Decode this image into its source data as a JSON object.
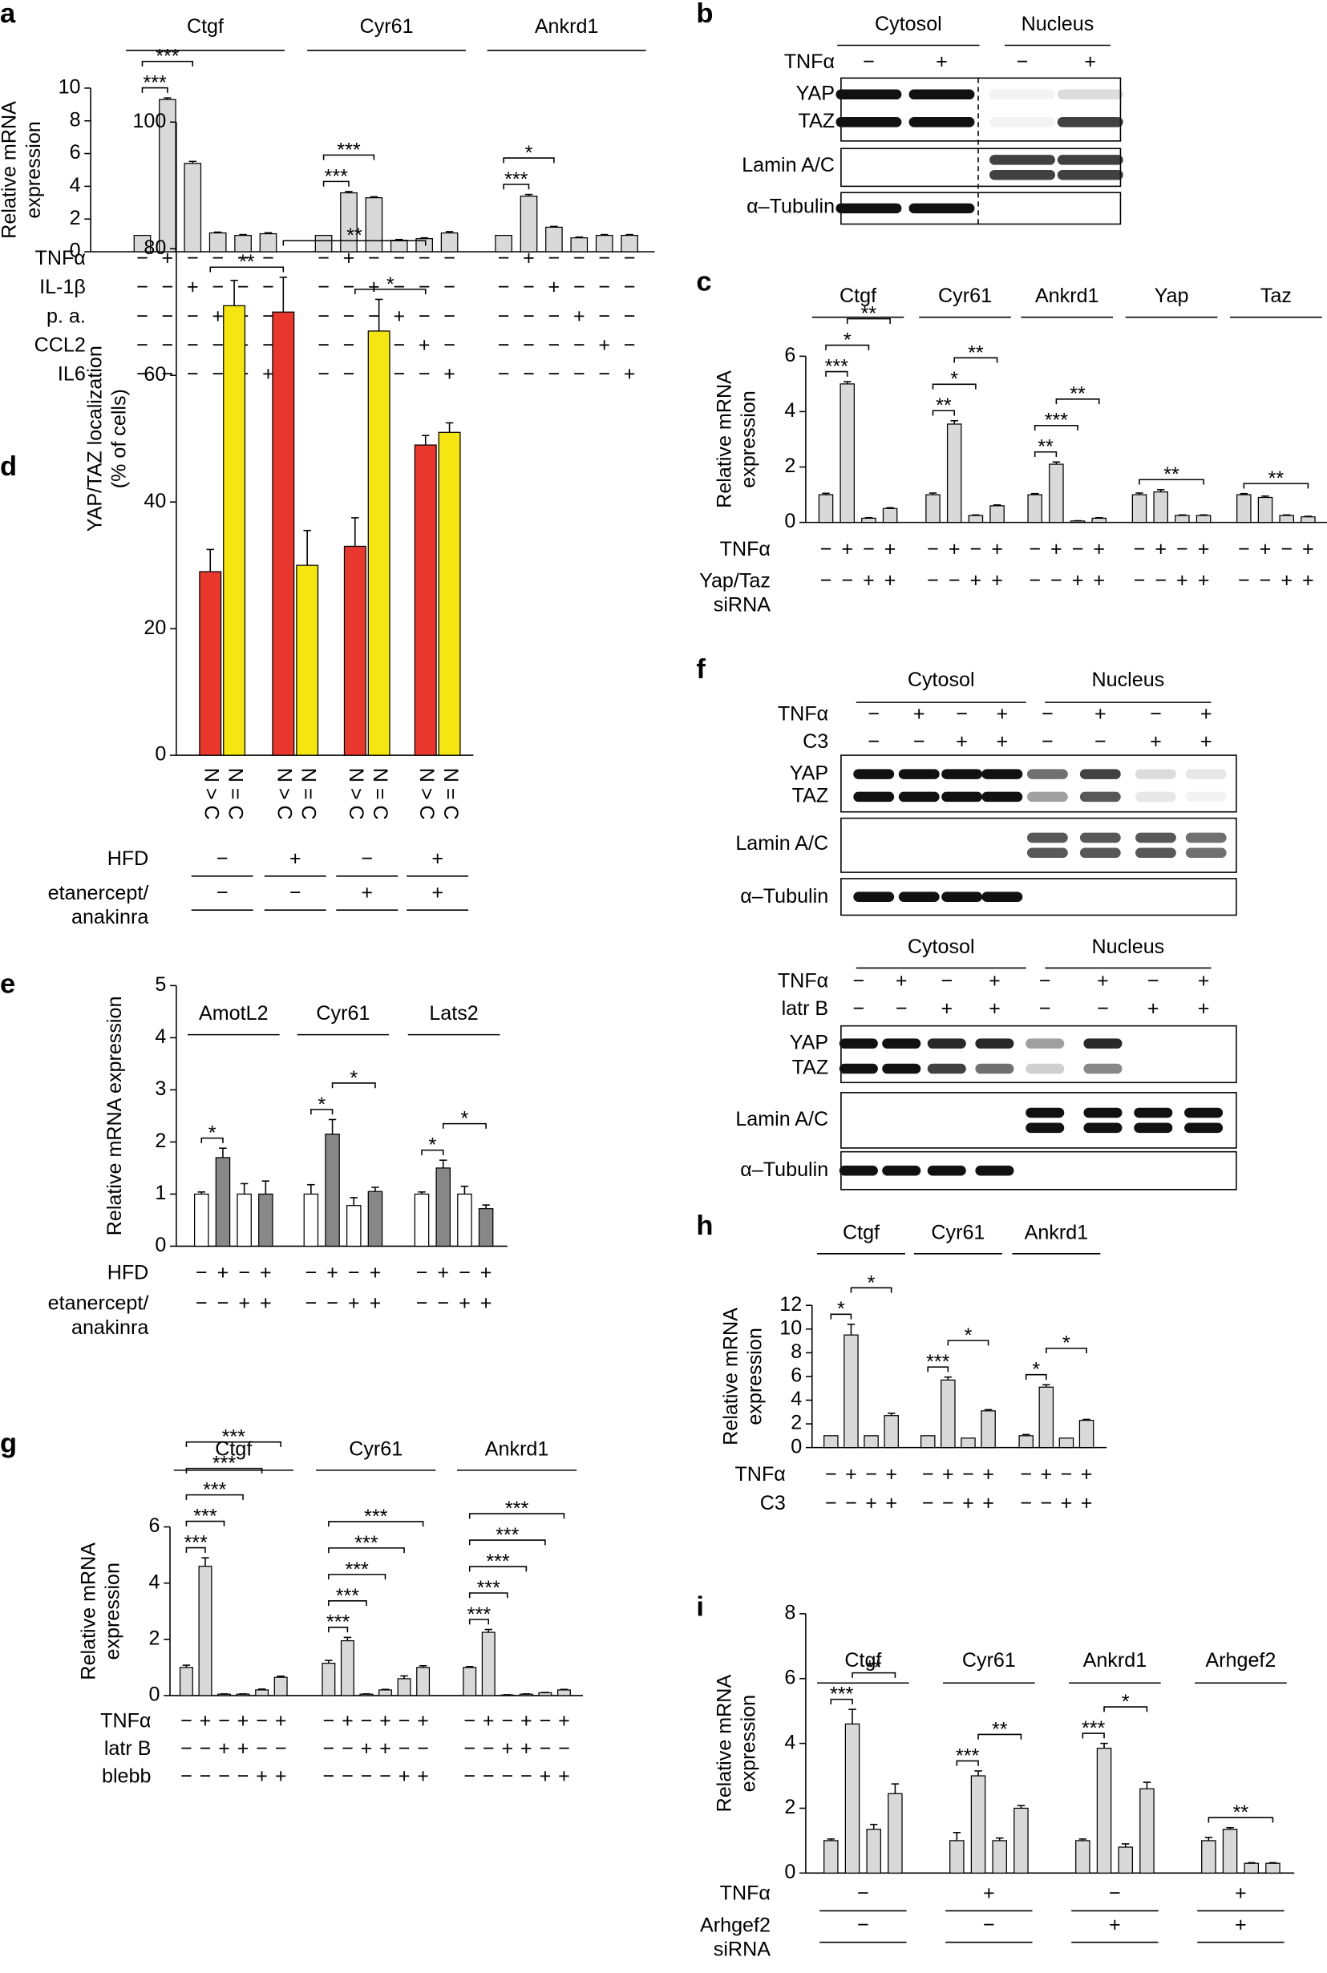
{
  "chart_data": [
    {
      "panel": "a",
      "type": "bar",
      "ylabel": "Relative mRNA\nexpression",
      "ylim": [
        0,
        10
      ],
      "yticks": [
        0,
        2,
        4,
        6,
        8,
        10
      ],
      "color": "#d9d9d9",
      "groups": [
        {
          "name": "Ctgf",
          "values": [
            1,
            9.3,
            5.4,
            1.15,
            1.0,
            1.1
          ],
          "errors": [
            0,
            0.1,
            0.12,
            0.05,
            0.05,
            0.06
          ]
        },
        {
          "name": "Cyr61",
          "values": [
            1,
            3.6,
            3.3,
            0.7,
            0.8,
            1.15
          ],
          "errors": [
            0,
            0.08,
            0.06,
            0.05,
            0.05,
            0.08
          ]
        },
        {
          "name": "Ankrd1",
          "values": [
            1,
            3.4,
            1.5,
            0.85,
            1.0,
            1.0
          ],
          "errors": [
            0,
            0.1,
            0.05,
            0.05,
            0.05,
            0.05
          ]
        }
      ],
      "conditions": [
        {
          "name": "TNFα",
          "signs": [
            "−",
            "+",
            "−",
            "−",
            "−",
            "−"
          ]
        },
        {
          "name": "IL‑1β",
          "signs": [
            "−",
            "−",
            "+",
            "−",
            "−",
            "−"
          ]
        },
        {
          "name": "p. a.",
          "signs": [
            "−",
            "−",
            "−",
            "+",
            "−",
            "−"
          ]
        },
        {
          "name": "CCL2",
          "signs": [
            "−",
            "−",
            "−",
            "−",
            "+",
            "−"
          ]
        },
        {
          "name": "IL6",
          "signs": [
            "−",
            "−",
            "−",
            "−",
            "−",
            "+"
          ]
        }
      ],
      "sig": [
        {
          "text": "***",
          "bars": [
            0,
            1
          ]
        },
        {
          "text": "***",
          "bars": [
            0,
            2
          ]
        },
        {
          "text": "***",
          "bars": [
            6,
            7
          ]
        },
        {
          "text": "***",
          "bars": [
            6,
            8
          ]
        },
        {
          "text": "***",
          "bars": [
            12,
            13
          ]
        },
        {
          "text": "*",
          "bars": [
            12,
            14
          ]
        }
      ]
    },
    {
      "panel": "c",
      "type": "bar",
      "ylabel": "Relative mRNA\nexpression",
      "ylim": [
        0,
        6
      ],
      "yticks": [
        0,
        2,
        4,
        6
      ],
      "color": "#d9d9d9",
      "groups": [
        {
          "name": "Ctgf",
          "values": [
            1,
            5.0,
            0.15,
            0.5
          ],
          "errors": [
            0.05,
            0.08,
            0.02,
            0.03
          ]
        },
        {
          "name": "Cyr61",
          "values": [
            1,
            3.55,
            0.25,
            0.6
          ],
          "errors": [
            0.06,
            0.12,
            0.02,
            0.03
          ]
        },
        {
          "name": "Ankrd1",
          "values": [
            1,
            2.1,
            0.05,
            0.15
          ],
          "errors": [
            0.04,
            0.08,
            0.01,
            0.02
          ]
        },
        {
          "name": "Yap",
          "values": [
            1,
            1.1,
            0.25,
            0.25
          ],
          "errors": [
            0.06,
            0.08,
            0.02,
            0.02
          ]
        },
        {
          "name": "Taz",
          "values": [
            1,
            0.9,
            0.25,
            0.2
          ],
          "errors": [
            0.04,
            0.05,
            0.02,
            0.02
          ]
        }
      ],
      "conditions": [
        {
          "name": "TNFα",
          "signs": [
            "−",
            "+",
            "−",
            "+"
          ]
        },
        {
          "name": "Yap/Taz\nsiRNA",
          "signs": [
            "−",
            "−",
            "+",
            "+"
          ]
        }
      ],
      "sig": [
        {
          "text": "***",
          "bars": [
            0,
            1
          ]
        },
        {
          "text": "*",
          "bars": [
            0,
            2
          ]
        },
        {
          "text": "**",
          "bars": [
            1,
            3
          ]
        },
        {
          "text": "**",
          "bars": [
            4,
            5
          ]
        },
        {
          "text": "*",
          "bars": [
            4,
            6
          ]
        },
        {
          "text": "**",
          "bars": [
            5,
            7
          ]
        },
        {
          "text": "**",
          "bars": [
            8,
            9
          ]
        },
        {
          "text": "***",
          "bars": [
            8,
            10
          ]
        },
        {
          "text": "**",
          "bars": [
            9,
            11
          ]
        },
        {
          "text": "**",
          "bars": [
            12,
            15
          ]
        },
        {
          "text": "**",
          "bars": [
            16,
            19
          ]
        }
      ]
    },
    {
      "panel": "d",
      "type": "bar",
      "ylabel": "YAP/TAZ localization\n(% of cells)",
      "ylim": [
        0,
        100
      ],
      "yticks": [
        0,
        20,
        40,
        60,
        80,
        100
      ],
      "colors": [
        "#e8382e",
        "#f5e511"
      ],
      "bar_labels": [
        "N > C",
        "N = C"
      ],
      "groups": [
        {
          "values": [
            29,
            71
          ],
          "errors": [
            3.5,
            4
          ]
        },
        {
          "values": [
            70,
            30
          ],
          "errors": [
            5.5,
            5.5
          ]
        },
        {
          "values": [
            33,
            67
          ],
          "errors": [
            4.5,
            5
          ]
        },
        {
          "values": [
            49,
            51
          ],
          "errors": [
            1.5,
            1.5
          ]
        }
      ],
      "conditions": [
        {
          "name": "HFD",
          "signs": [
            "−",
            "+",
            "−",
            "+"
          ]
        },
        {
          "name": "etanercept/\nanakinra",
          "signs": [
            "−",
            "−",
            "+",
            "+"
          ]
        }
      ],
      "sig": [
        {
          "text": "**",
          "bars": [
            0,
            2
          ]
        },
        {
          "text": "*",
          "bars": [
            4,
            6
          ]
        },
        {
          "text": "**",
          "bars": [
            2,
            6
          ]
        }
      ]
    },
    {
      "panel": "e",
      "type": "bar",
      "ylabel": "Relative mRNA expression",
      "ylim": [
        0,
        5
      ],
      "yticks": [
        0,
        1,
        2,
        3,
        4,
        5
      ],
      "colors": [
        "#ffffff",
        "#888888"
      ],
      "groups": [
        {
          "name": "AmotL2",
          "values": [
            1.0,
            1.7,
            1.0,
            1.0
          ],
          "errors": [
            0.04,
            0.18,
            0.2,
            0.25
          ]
        },
        {
          "name": "Cyr61",
          "values": [
            1.0,
            2.15,
            0.78,
            1.05
          ],
          "errors": [
            0.18,
            0.28,
            0.15,
            0.08
          ]
        },
        {
          "name": "Lats2",
          "values": [
            1.0,
            1.5,
            1.0,
            0.72
          ],
          "errors": [
            0.04,
            0.15,
            0.15,
            0.07
          ]
        }
      ],
      "conditions": [
        {
          "name": "HFD",
          "signs": [
            "−",
            "+",
            "−",
            "+"
          ]
        },
        {
          "name": "etanercept/\nanakinra",
          "signs": [
            "−",
            "−",
            "+",
            "+"
          ]
        }
      ],
      "sig": [
        {
          "text": "*",
          "bars": [
            0,
            1
          ]
        },
        {
          "text": "*",
          "bars": [
            4,
            5
          ]
        },
        {
          "text": "*",
          "bars": [
            5,
            7
          ]
        },
        {
          "text": "*",
          "bars": [
            8,
            9
          ]
        },
        {
          "text": "*",
          "bars": [
            9,
            11
          ]
        }
      ]
    },
    {
      "panel": "g",
      "type": "bar",
      "ylabel": "Relative mRNA\nexpression",
      "ylim": [
        0,
        6
      ],
      "yticks": [
        0,
        2,
        4,
        6
      ],
      "color": "#d9d9d9",
      "groups": [
        {
          "name": "Ctgf",
          "values": [
            1,
            4.6,
            0.05,
            0.05,
            0.2,
            0.65
          ],
          "errors": [
            0.08,
            0.3,
            0.01,
            0.01,
            0.03,
            0.04
          ]
        },
        {
          "name": "Cyr61",
          "values": [
            1.15,
            1.95,
            0.05,
            0.2,
            0.6,
            1.0
          ],
          "errors": [
            0.1,
            0.12,
            0.01,
            0.02,
            0.1,
            0.06
          ]
        },
        {
          "name": "Ankrd1",
          "values": [
            1.0,
            2.25,
            0.02,
            0.05,
            0.1,
            0.2
          ],
          "errors": [
            0.03,
            0.1,
            0.01,
            0.01,
            0.01,
            0.02
          ]
        }
      ],
      "conditions": [
        {
          "name": "TNFα",
          "signs": [
            "−",
            "+",
            "−",
            "+",
            "−",
            "+"
          ]
        },
        {
          "name": "latr B",
          "signs": [
            "−",
            "−",
            "+",
            "+",
            "−",
            "−"
          ]
        },
        {
          "name": "blebb",
          "signs": [
            "−",
            "−",
            "−",
            "−",
            "+",
            "+"
          ]
        }
      ],
      "sig": [
        {
          "text": "***",
          "bars": [
            0,
            1
          ]
        },
        {
          "text": "***",
          "bars": [
            0,
            2
          ]
        },
        {
          "text": "***",
          "bars": [
            0,
            3
          ]
        },
        {
          "text": "***",
          "bars": [
            0,
            4
          ]
        },
        {
          "text": "***",
          "bars": [
            0,
            5
          ]
        },
        {
          "text": "***",
          "bars": [
            6,
            7
          ]
        },
        {
          "text": "***",
          "bars": [
            6,
            8
          ]
        },
        {
          "text": "***",
          "bars": [
            6,
            9
          ]
        },
        {
          "text": "***",
          "bars": [
            6,
            10
          ]
        },
        {
          "text": "***",
          "bars": [
            6,
            11
          ]
        },
        {
          "text": "***",
          "bars": [
            12,
            13
          ]
        },
        {
          "text": "***",
          "bars": [
            12,
            14
          ]
        },
        {
          "text": "***",
          "bars": [
            12,
            15
          ]
        },
        {
          "text": "***",
          "bars": [
            12,
            16
          ]
        },
        {
          "text": "***",
          "bars": [
            12,
            17
          ]
        }
      ]
    },
    {
      "panel": "h",
      "type": "bar",
      "ylabel": "Relative mRNA\nexpression",
      "ylim": [
        0,
        12
      ],
      "yticks": [
        0,
        2,
        4,
        6,
        8,
        10,
        12
      ],
      "color": "#d9d9d9",
      "groups": [
        {
          "name": "Ctgf",
          "values": [
            1,
            9.5,
            1,
            2.7
          ],
          "errors": [
            0,
            0.9,
            0,
            0.2
          ]
        },
        {
          "name": "Cyr61",
          "values": [
            1,
            5.7,
            0.8,
            3.1
          ],
          "errors": [
            0,
            0.25,
            0,
            0.1
          ]
        },
        {
          "name": "Ankrd1",
          "values": [
            1,
            5.1,
            0.8,
            2.3
          ],
          "errors": [
            0.1,
            0.2,
            0,
            0.08
          ]
        }
      ],
      "conditions": [
        {
          "name": "TNFα",
          "signs": [
            "−",
            "+",
            "−",
            "+"
          ]
        },
        {
          "name": "C3",
          "signs": [
            "−",
            "−",
            "+",
            "+"
          ]
        }
      ],
      "sig": [
        {
          "text": "*",
          "bars": [
            0,
            1
          ]
        },
        {
          "text": "*",
          "bars": [
            1,
            3
          ]
        },
        {
          "text": "***",
          "bars": [
            4,
            5
          ]
        },
        {
          "text": "*",
          "bars": [
            5,
            7
          ]
        },
        {
          "text": "*",
          "bars": [
            8,
            9
          ]
        },
        {
          "text": "*",
          "bars": [
            9,
            11
          ]
        }
      ]
    },
    {
      "panel": "i",
      "type": "bar",
      "ylabel": "Relative mRNA\nexpression",
      "ylim": [
        0,
        8
      ],
      "yticks": [
        0,
        2,
        4,
        6,
        8
      ],
      "color": "#d9d9d9",
      "groups": [
        {
          "name": "Ctgf",
          "values": [
            1,
            4.6,
            1.35,
            2.45
          ],
          "errors": [
            0.05,
            0.45,
            0.15,
            0.3
          ]
        },
        {
          "name": "Cyr61",
          "values": [
            1,
            3.0,
            1.0,
            2.0
          ],
          "errors": [
            0.25,
            0.15,
            0.08,
            0.08
          ]
        },
        {
          "name": "Ankrd1",
          "values": [
            1,
            3.85,
            0.8,
            2.6
          ],
          "errors": [
            0.05,
            0.15,
            0.1,
            0.2
          ]
        },
        {
          "name": "Arhgef2",
          "values": [
            1,
            1.35,
            0.3,
            0.3
          ],
          "errors": [
            0.1,
            0.05,
            0.02,
            0.02
          ]
        }
      ],
      "conditions": [
        {
          "name": "TNFα",
          "signs": [
            "−",
            "+",
            "−",
            "+"
          ]
        },
        {
          "name": "Arhgef2\nsiRNA",
          "signs": [
            "−",
            "−",
            "+",
            "+"
          ]
        }
      ],
      "sig": [
        {
          "text": "***",
          "bars": [
            0,
            1
          ]
        },
        {
          "text": "**",
          "bars": [
            1,
            3
          ]
        },
        {
          "text": "***",
          "bars": [
            4,
            5
          ]
        },
        {
          "text": "**",
          "bars": [
            5,
            7
          ]
        },
        {
          "text": "***",
          "bars": [
            8,
            9
          ]
        },
        {
          "text": "*",
          "bars": [
            9,
            11
          ]
        },
        {
          "text": "**",
          "bars": [
            12,
            15
          ]
        }
      ]
    }
  ],
  "blots": [
    {
      "panel": "b",
      "compartments": [
        "Cytosol",
        "Nucleus"
      ],
      "conditions": [
        {
          "name": "TNFα",
          "signs": [
            "−",
            "+",
            "−",
            "+"
          ]
        }
      ],
      "rows": [
        "YAP",
        "TAZ",
        "Lamin A/C",
        "α–Tubulin"
      ]
    },
    {
      "panel": "f",
      "compartments": [
        "Cytosol",
        "Nucleus"
      ],
      "conditions": [
        {
          "name": "TNFα",
          "signs": [
            "−",
            "+",
            "−",
            "+",
            "−",
            "+",
            "−",
            "+"
          ]
        },
        {
          "name": "C3",
          "signs": [
            "−",
            "−",
            "+",
            "+",
            "−",
            "−",
            "+",
            "+"
          ]
        }
      ],
      "rows": [
        "YAP",
        "TAZ",
        "Lamin A/C",
        "α–Tubulin"
      ]
    },
    {
      "compartments": [
        "Cytosol",
        "Nucleus"
      ],
      "conditions": [
        {
          "name": "TNFα",
          "signs": [
            "−",
            "+",
            "−",
            "+",
            "−",
            "+",
            "−",
            "+"
          ]
        },
        {
          "name": "latr B",
          "signs": [
            "−",
            "−",
            "+",
            "+",
            "−",
            "−",
            "+",
            "+"
          ]
        }
      ],
      "rows": [
        "YAP",
        "TAZ",
        "Lamin A/C",
        "α–Tubulin"
      ]
    }
  ]
}
